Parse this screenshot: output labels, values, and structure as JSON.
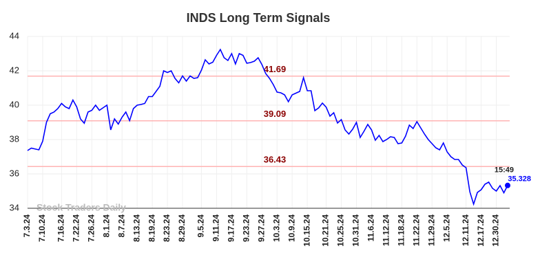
{
  "chart_data": {
    "type": "line",
    "title": "INDS Long Term Signals",
    "categories": [
      "7.3.24",
      null,
      null,
      null,
      "7.10.24",
      null,
      null,
      null,
      null,
      "7.16.24",
      null,
      null,
      null,
      "7.22.24",
      null,
      null,
      null,
      "7.26.24",
      null,
      null,
      null,
      "8.1.24",
      null,
      null,
      null,
      "8.7.24",
      null,
      null,
      null,
      "8.13.24",
      null,
      null,
      null,
      "8.19.24",
      null,
      null,
      null,
      "8.23.24",
      null,
      null,
      null,
      "8.29.24",
      null,
      null,
      null,
      null,
      "9.5.24",
      null,
      null,
      null,
      "9.11.24",
      null,
      null,
      null,
      "9.17.24",
      null,
      null,
      null,
      "9.23.24",
      null,
      null,
      null,
      "9.27.24",
      null,
      null,
      null,
      "10.3.24",
      null,
      null,
      null,
      "10.9.24",
      null,
      null,
      null,
      "10.15.24",
      null,
      null,
      null,
      null,
      "10.21.24",
      null,
      null,
      null,
      "10.25.24",
      null,
      null,
      null,
      "10.31.24",
      null,
      null,
      null,
      "11.6.24",
      null,
      null,
      null,
      "11.12.24",
      null,
      null,
      null,
      "11.18.24",
      null,
      null,
      null,
      "11.22.24",
      null,
      null,
      null,
      "11.29.24",
      null,
      null,
      null,
      "12.5.24",
      null,
      null,
      null,
      null,
      "12.11.24",
      null,
      null,
      null,
      "12.17.24",
      null,
      null,
      null,
      "12.30.24",
      null,
      null,
      null
    ],
    "series": [
      {
        "name": "INDS",
        "color": "#0000ff",
        "values": [
          37.36,
          37.5,
          37.45,
          37.4,
          37.9,
          39.0,
          39.5,
          39.6,
          39.8,
          40.1,
          39.9,
          39.8,
          40.3,
          39.9,
          39.2,
          38.95,
          39.6,
          39.7,
          40.0,
          39.7,
          39.85,
          40.0,
          38.56,
          39.2,
          38.9,
          39.3,
          39.6,
          39.1,
          39.8,
          40.0,
          40.04,
          40.1,
          40.5,
          40.5,
          40.8,
          41.1,
          42.0,
          41.9,
          42.0,
          41.56,
          41.3,
          41.7,
          41.4,
          41.7,
          41.56,
          41.6,
          42.04,
          42.64,
          42.4,
          42.5,
          42.9,
          43.24,
          42.76,
          42.6,
          43.0,
          42.4,
          43.0,
          42.9,
          42.44,
          42.48,
          42.56,
          42.76,
          42.36,
          41.84,
          41.56,
          41.2,
          40.76,
          40.72,
          40.6,
          40.2,
          40.6,
          40.7,
          40.8,
          41.6,
          40.84,
          40.84,
          39.68,
          39.84,
          40.12,
          39.88,
          39.36,
          39.56,
          38.96,
          39.16,
          38.56,
          38.32,
          38.6,
          39.0,
          38.12,
          38.48,
          38.88,
          38.56,
          37.96,
          38.24,
          37.88,
          38.0,
          38.16,
          38.12,
          37.76,
          37.8,
          38.2,
          38.84,
          38.64,
          39.04,
          38.68,
          38.32,
          38.0,
          37.76,
          37.52,
          37.4,
          37.8,
          37.28,
          37.0,
          36.84,
          36.84,
          36.52,
          36.36,
          34.96,
          34.24,
          34.92,
          35.08,
          35.4,
          35.52,
          35.16,
          35.0,
          35.32,
          34.9,
          35.328
        ]
      }
    ],
    "reference_lines": [
      41.69,
      39.09,
      36.43
    ],
    "reference_color": "#ffb3b3",
    "reference_label_color": "#8b0000",
    "last_time": "15:49",
    "watermark": "Stock Traders Daily",
    "ylim": [
      34,
      44
    ],
    "yticks": [
      34,
      36,
      38,
      40,
      42,
      44
    ],
    "grid": true
  }
}
